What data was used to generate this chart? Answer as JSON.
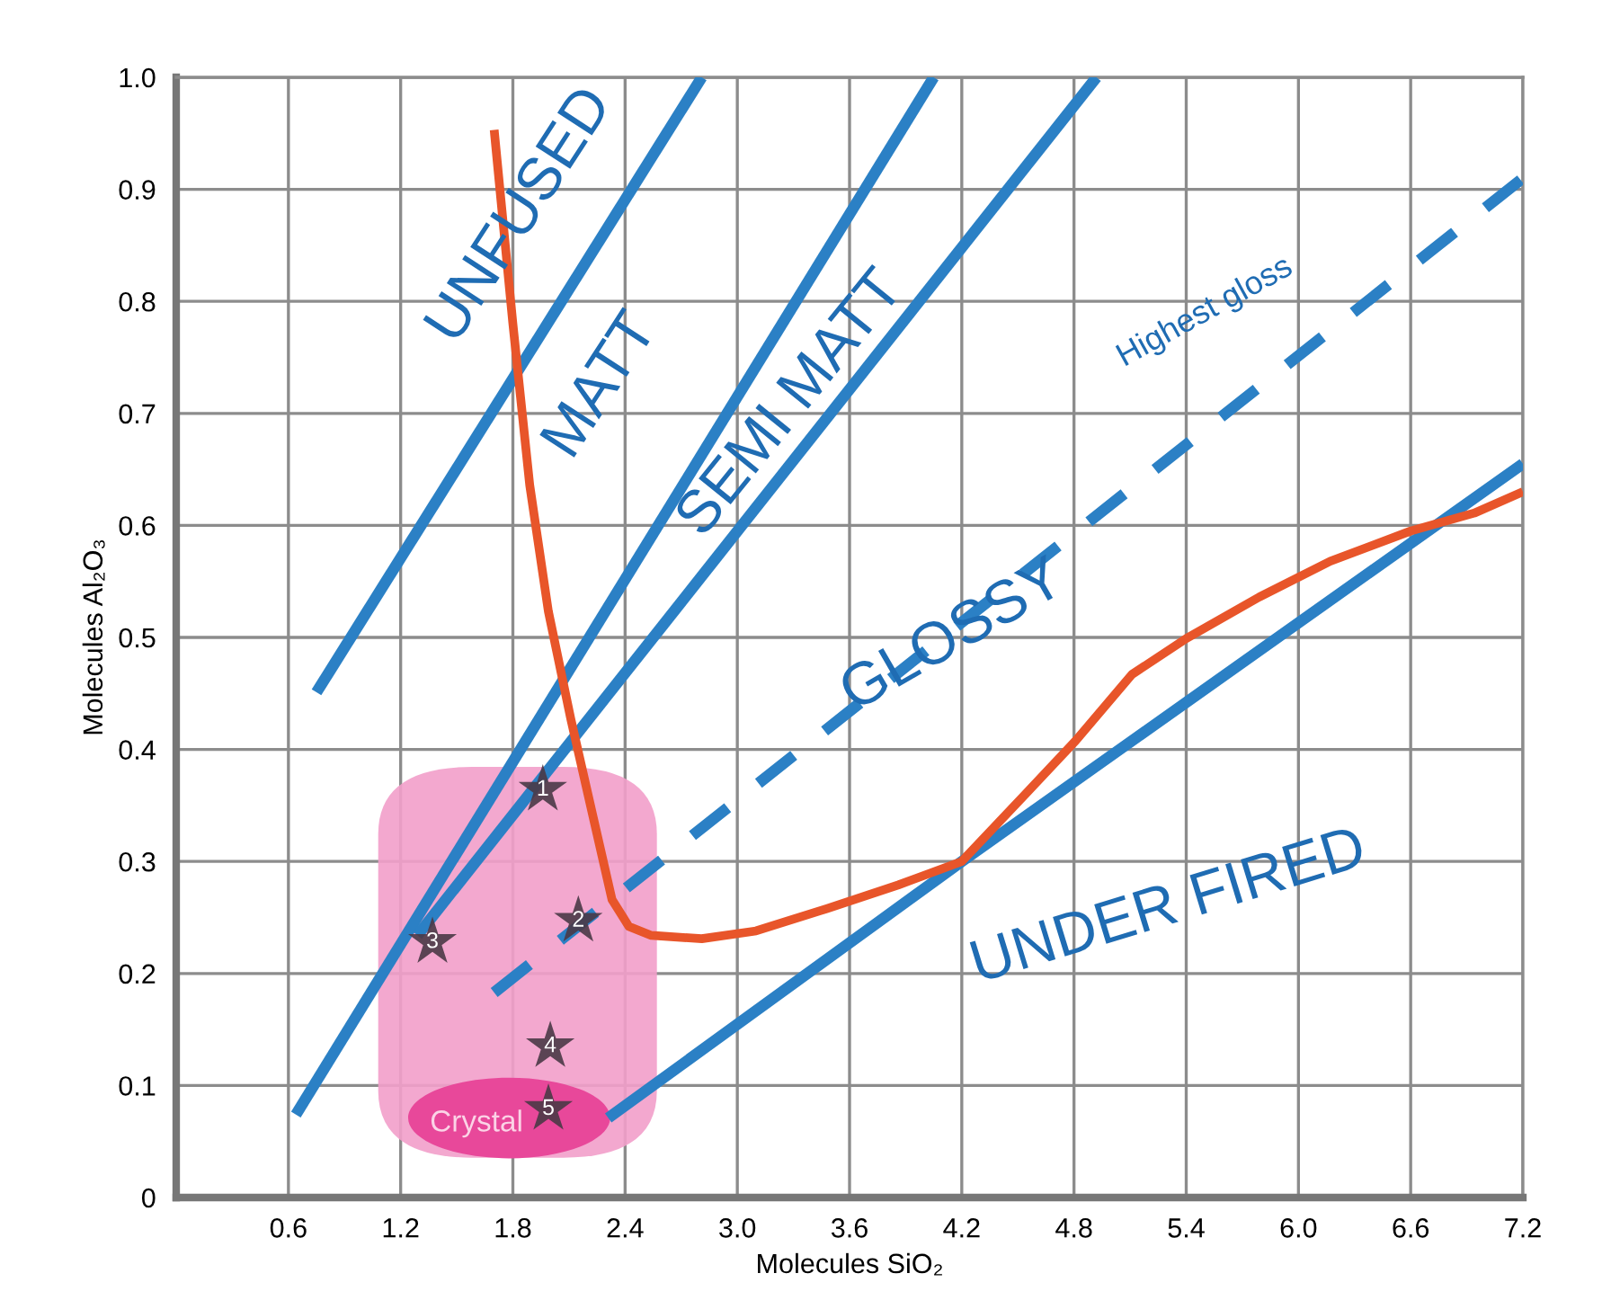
{
  "chart_data": {
    "type": "line",
    "xlabel": "Molecules SiO₂",
    "ylabel": "Molecules Al₂O₃",
    "xlim": [
      0,
      7.2
    ],
    "ylim": [
      0,
      1.0
    ],
    "xticks": [
      0.6,
      1.2,
      1.8,
      2.4,
      {
        "value": 3,
        "label": "3.0"
      },
      3.6,
      4.2,
      4.8,
      5.4,
      {
        "value": 6,
        "label": "6.0"
      },
      6.6,
      7.2
    ],
    "yticks": [
      0,
      0.1,
      0.2,
      0.3,
      0.4,
      0.5,
      0.6,
      0.7,
      0.8,
      0.9,
      {
        "value": 1,
        "label": "1.0"
      }
    ],
    "grid": true,
    "legend": false,
    "marker": "none",
    "line_style": "solid",
    "series": [
      {
        "color": "#2b80c5",
        "x": [
          0.75,
          2.81
        ],
        "values": [
          0.451,
          1.0
        ]
      },
      {
        "color": "#2b80c5",
        "x": [
          0.64,
          4.05
        ],
        "values": [
          0.074,
          1.0
        ]
      },
      {
        "color": "#2b80c5",
        "x": [
          1.29,
          4.92
        ],
        "values": [
          0.234,
          1.0
        ]
      },
      {
        "color": "#2b80c5",
        "line_style": "dashed",
        "x": [
          1.7,
          7.2
        ],
        "values": [
          0.183,
          0.91
        ]
      },
      {
        "color": "#2b80c5",
        "x": [
          2.31,
          4.2,
          7.2
        ],
        "values": [
          0.071,
          0.3,
          0.655
        ]
      },
      {
        "color": "#e8552a",
        "x": [
          1.7,
          1.8,
          1.89,
          1.99,
          2.11,
          2.23,
          2.33,
          2.42,
          2.54,
          2.81,
          3.1,
          3.48,
          3.86,
          4.2,
          4.54,
          4.81,
          5.11,
          5.4,
          5.79,
          6.17,
          6.6,
          6.94,
          7.2
        ],
        "values": [
          0.953,
          0.78,
          0.636,
          0.523,
          0.427,
          0.339,
          0.266,
          0.242,
          0.234,
          0.231,
          0.238,
          0.258,
          0.279,
          0.3,
          0.36,
          0.408,
          0.467,
          0.499,
          0.536,
          0.568,
          0.595,
          0.611,
          0.63
        ]
      },
      {
        "type": "scatter",
        "marker": "star",
        "color": "#4a3946",
        "x": [
          1.96,
          2.15,
          1.37,
          2.0,
          1.99
        ],
        "values": [
          0.364,
          0.247,
          0.228,
          0.135,
          0.079
        ]
      }
    ],
    "annotations": [
      "UNFUSED",
      "MATT",
      "SEMI MATT",
      "GLOSSY",
      "UNDER FIRED",
      "Highest gloss",
      "Crystal",
      {
        "text": "1",
        "x": 1.96,
        "y": 0.364
      },
      {
        "text": "2",
        "x": 2.15,
        "y": 0.247
      },
      {
        "text": "3",
        "x": 1.37,
        "y": 0.228
      },
      {
        "text": "4",
        "x": 2.0,
        "y": 0.135
      },
      {
        "text": "5",
        "x": 1.99,
        "y": 0.079
      }
    ]
  }
}
